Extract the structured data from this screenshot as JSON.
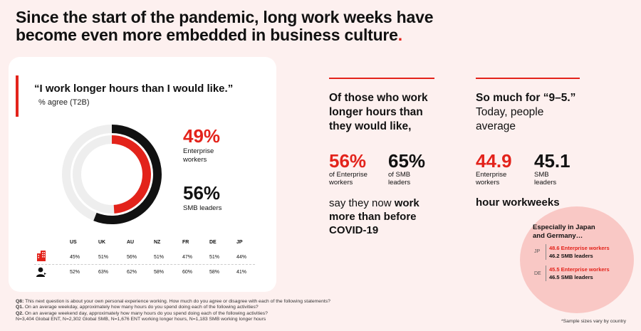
{
  "headline": {
    "text": "Since the start of the pandemic, long work weeks have become even more embedded in business culture",
    "dot": "."
  },
  "card": {
    "quote": "“I work longer hours than I would like.”",
    "subtitle": "% agree (T2B)",
    "stat1": {
      "value": "49%",
      "label_line1": "Enterprise",
      "label_line2": "workers"
    },
    "stat2": {
      "value": "56%",
      "label": "SMB leaders"
    },
    "table": {
      "headers": [
        "US",
        "UK",
        "AU",
        "NZ",
        "FR",
        "DE",
        "JP"
      ],
      "rows": [
        {
          "icon": "building-icon",
          "values": [
            "45%",
            "51%",
            "56%",
            "51%",
            "47%",
            "51%",
            "44%"
          ]
        },
        {
          "icon": "person-icon",
          "values": [
            "52%",
            "63%",
            "62%",
            "58%",
            "60%",
            "58%",
            "41%"
          ]
        }
      ]
    }
  },
  "middle": {
    "title": [
      "Of those who work",
      "longer hours than",
      "they would like,"
    ],
    "stat1": {
      "value": "56%",
      "label_line1": "of Enterprise",
      "label_line2": "workers"
    },
    "stat2": {
      "value": "65%",
      "label_line1": "of SMB",
      "label_line2": "leaders"
    },
    "tail_pre": "say they now ",
    "tail_bold1": "work",
    "tail_bold2": "more than before",
    "tail_bold3": "COVID-19"
  },
  "right": {
    "title_bold": "So much for “9–5.”",
    "title_rest": [
      "Today, people",
      "average"
    ],
    "stat1": {
      "value": "44.9",
      "label_line1": "Enterprise",
      "label_line2": "workers"
    },
    "stat2": {
      "value": "45.1",
      "label_line1": "SMB",
      "label_line2": "leaders"
    },
    "tail": "hour workweeks"
  },
  "callout": {
    "title_line1": "Especially in Japan",
    "title_line2": "and Germany…",
    "jp": {
      "code": "JP",
      "ent": "48.6 Enterprise workers",
      "smb": "46.2 SMB leaders"
    },
    "de": {
      "code": "DE",
      "ent": "45.5 Enterprise workers",
      "smb": "46.5 SMB leaders"
    }
  },
  "footnotes": {
    "q8_label": "Q8:",
    "q8": " This next question is about your own personal experience working. How much do you agree or disagree with each of the following statements?",
    "q1_label": "Q1.",
    "q1": " On an average weekday, approximately how many hours do you spend doing each of the following activities?",
    "q2_label": "Q2.",
    "q2": " On an average weekend day, approximately how many hours do you spend doing each of the following activities?",
    "n": "N=3,404 Global ENT, N=2,302 Global SMB, N=1,676 ENT working longer hours, N=1,183 SMB working longer hours",
    "sample_note": "*Sample sizes vary by country"
  },
  "colors": {
    "accent": "#e3231b",
    "enterprise": "#e3231b",
    "smb": "#111111",
    "track": "#eeeeee",
    "background": "#fdf0ef"
  },
  "chart_data": [
    {
      "type": "pie",
      "subtype": "radial-donut",
      "title": "“I work longer hours than I would like.”",
      "subtitle": "% agree (T2B)",
      "series": [
        {
          "name": "Enterprise workers",
          "value": 49,
          "color": "#e3231b"
        },
        {
          "name": "SMB leaders",
          "value": 56,
          "color": "#111111"
        }
      ]
    },
    {
      "type": "table",
      "columns": [
        "US",
        "UK",
        "AU",
        "NZ",
        "FR",
        "DE",
        "JP"
      ],
      "rows": [
        {
          "icon": "building-icon",
          "values": [
            45,
            51,
            56,
            51,
            47,
            51,
            44
          ]
        },
        {
          "icon": "person-icon",
          "values": [
            52,
            63,
            62,
            58,
            60,
            58,
            41
          ]
        }
      ]
    }
  ]
}
